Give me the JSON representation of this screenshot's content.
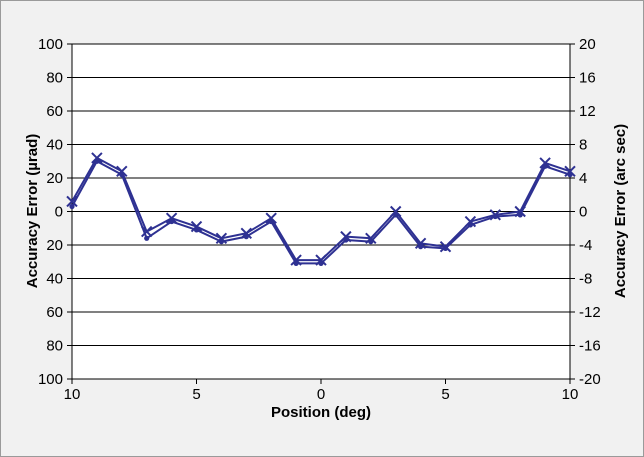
{
  "chart_data": {
    "type": "line",
    "x_tick_labels": [
      "10",
      "5",
      "0",
      "5",
      "10"
    ],
    "x_range": [
      -10,
      10
    ],
    "x": [
      -10,
      -9,
      -8,
      -7,
      -6,
      -5,
      -4,
      -3,
      -2,
      -1,
      0,
      1,
      2,
      3,
      4,
      5,
      6,
      7,
      8,
      9,
      10
    ],
    "series": [
      {
        "marker": "cross",
        "values": [
          6,
          32,
          24,
          -12,
          -4,
          -9,
          -16,
          -13,
          -4,
          -29,
          -29,
          -15,
          -16,
          0,
          -19,
          -21,
          -6,
          -2,
          0,
          29,
          24
        ]
      },
      {
        "marker": "dot",
        "values": [
          3,
          30,
          22,
          -16,
          -6,
          -11,
          -18,
          -15,
          -6,
          -31,
          -31,
          -17,
          -18,
          -2,
          -21,
          -22,
          -8,
          -3,
          -2,
          27,
          22
        ]
      }
    ],
    "y_left": {
      "label": "Accuracy Error (µrad)",
      "range": [
        -100,
        100
      ],
      "tick_labels": [
        "100",
        "80",
        "60",
        "40",
        "20",
        "0",
        "20",
        "40",
        "60",
        "80",
        "100"
      ]
    },
    "y_right": {
      "label": "Accuracy Error (arc sec)",
      "range": [
        -20,
        20
      ],
      "tick_labels": [
        "20",
        "16",
        "12",
        "8",
        "4",
        "0",
        "-4",
        "-8",
        "-12",
        "-16",
        "-20"
      ]
    },
    "xlabel": "Position (deg)",
    "grid": "horizontal",
    "colors": {
      "series": "#2e3192",
      "plot_background": "#ffffff",
      "frame_background": "#f1f1f1",
      "grid": "#000000"
    }
  }
}
